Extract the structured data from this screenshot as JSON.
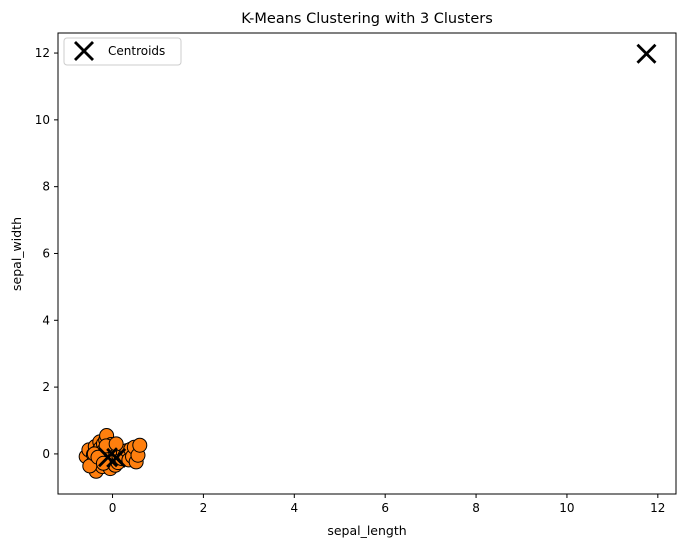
{
  "chart_data": {
    "type": "scatter",
    "title": "K-Means Clustering with 3 Clusters",
    "xlabel": "sepal_length",
    "ylabel": "sepal_width",
    "xlim": [
      -1.2,
      12.4
    ],
    "ylim": [
      -1.2,
      12.6
    ],
    "xticks": [
      0,
      2,
      4,
      6,
      8,
      10,
      12
    ],
    "yticks": [
      0,
      2,
      4,
      6,
      8,
      10,
      12
    ],
    "grid": false,
    "legend": {
      "position": "top-left",
      "entries": [
        {
          "label": "Centroids",
          "marker": "X",
          "color": "#000000"
        }
      ]
    },
    "series": [
      {
        "color": "#ff7f0e",
        "marker": "circle",
        "points": [
          [
            -0.58,
            -0.08
          ],
          [
            -0.52,
            0.12
          ],
          [
            -0.46,
            -0.32
          ],
          [
            -0.42,
            -0.02
          ],
          [
            -0.38,
            0.22
          ],
          [
            -0.36,
            -0.52
          ],
          [
            -0.33,
            0.06
          ],
          [
            -0.3,
            -0.22
          ],
          [
            -0.28,
            0.36
          ],
          [
            -0.26,
            0.18
          ],
          [
            -0.24,
            -0.04
          ],
          [
            -0.22,
            -0.38
          ],
          [
            -0.2,
            0.3
          ],
          [
            -0.18,
            0.12
          ],
          [
            -0.16,
            -0.16
          ],
          [
            -0.15,
            0.42
          ],
          [
            -0.13,
            0.55
          ],
          [
            -0.11,
            -0.08
          ],
          [
            -0.1,
            0.2
          ],
          [
            -0.08,
            -0.3
          ],
          [
            -0.06,
            0.08
          ],
          [
            -0.05,
            -0.44
          ],
          [
            -0.03,
            0.28
          ],
          [
            -0.02,
            -0.12
          ],
          [
            0.0,
            0.04
          ],
          [
            0.02,
            -0.2
          ],
          [
            0.04,
            0.16
          ],
          [
            0.06,
            -0.34
          ],
          [
            0.07,
            -0.02
          ],
          [
            0.1,
            0.1
          ],
          [
            0.12,
            -0.26
          ],
          [
            0.14,
            -0.06
          ],
          [
            0.17,
            0.02
          ],
          [
            0.2,
            -0.14
          ],
          [
            0.24,
            0.06
          ],
          [
            0.28,
            -0.04
          ],
          [
            0.32,
            0.1
          ],
          [
            0.36,
            -0.18
          ],
          [
            0.4,
            0.14
          ],
          [
            0.44,
            -0.08
          ],
          [
            0.48,
            0.2
          ],
          [
            0.52,
            -0.24
          ],
          [
            0.56,
            -0.04
          ],
          [
            0.6,
            0.26
          ],
          [
            -0.5,
            -0.36
          ],
          [
            -0.4,
            0.0
          ],
          [
            -0.32,
            -0.1
          ],
          [
            -0.2,
            -0.28
          ],
          [
            -0.14,
            0.24
          ],
          [
            0.08,
            0.3
          ]
        ]
      }
    ],
    "centroids": [
      [
        11.75,
        11.98
      ],
      [
        -0.1,
        -0.1
      ],
      [
        0.08,
        -0.12
      ]
    ]
  }
}
